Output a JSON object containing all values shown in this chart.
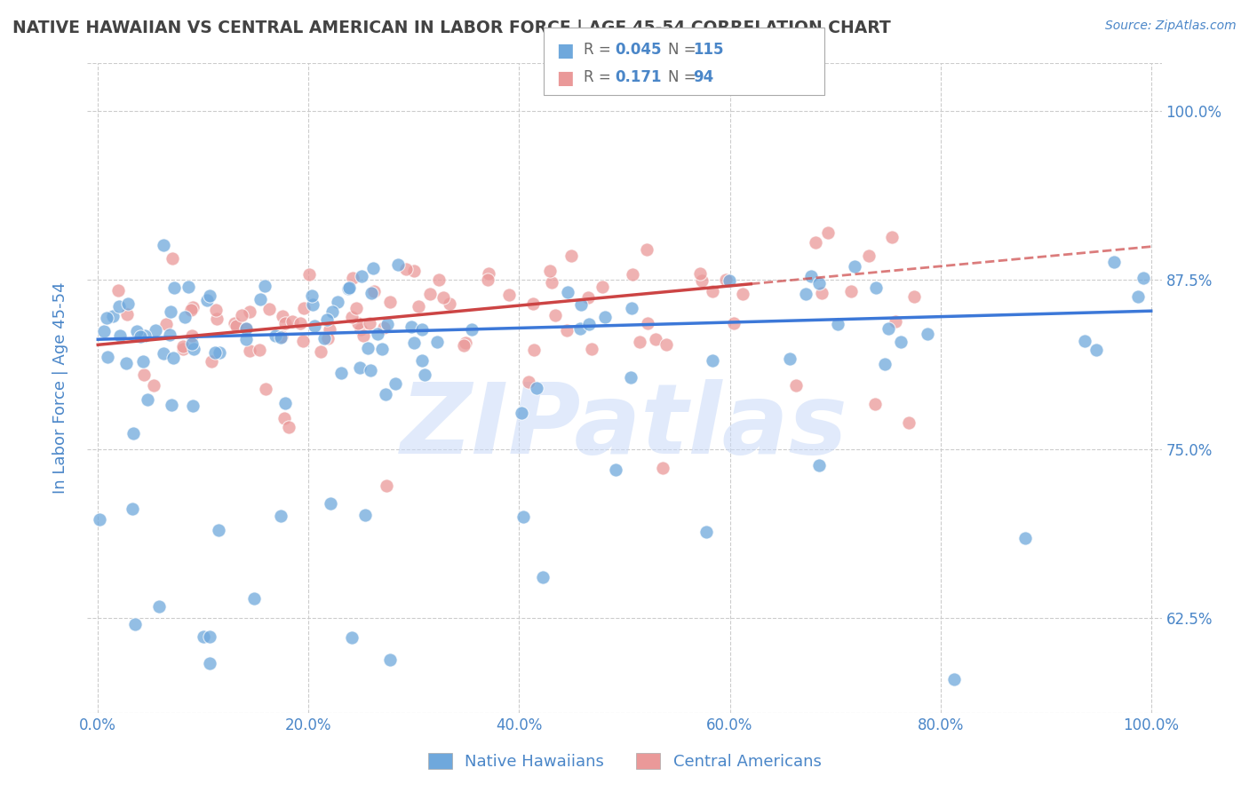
{
  "title": "NATIVE HAWAIIAN VS CENTRAL AMERICAN IN LABOR FORCE | AGE 45-54 CORRELATION CHART",
  "source": "Source: ZipAtlas.com",
  "ylabel": "In Labor Force | Age 45-54",
  "xlim": [
    -0.01,
    1.01
  ],
  "ylim": [
    0.555,
    1.035
  ],
  "yticks": [
    0.625,
    0.75,
    0.875,
    1.0
  ],
  "ytick_labels": [
    "62.5%",
    "75.0%",
    "87.5%",
    "100.0%"
  ],
  "xticks": [
    0.0,
    0.2,
    0.4,
    0.6,
    0.8,
    1.0
  ],
  "xtick_labels": [
    "0.0%",
    "20.0%",
    "40.0%",
    "60.0%",
    "80.0%",
    "100.0%"
  ],
  "blue_color": "#6fa8dc",
  "pink_color": "#ea9999",
  "trend_blue": "#3c78d8",
  "trend_pink": "#cc4444",
  "title_color": "#434343",
  "axis_label_color": "#4a86c8",
  "watermark_color": "#c9daf8",
  "watermark_text": "ZIPatlas",
  "background_color": "#ffffff",
  "grid_color": "#cccccc",
  "trend_blue_start_y": 0.831,
  "trend_blue_end_y": 0.852,
  "trend_pink_start_y": 0.827,
  "trend_pink_end_y": 0.872,
  "trend_pink_solid_end_x": 0.62
}
